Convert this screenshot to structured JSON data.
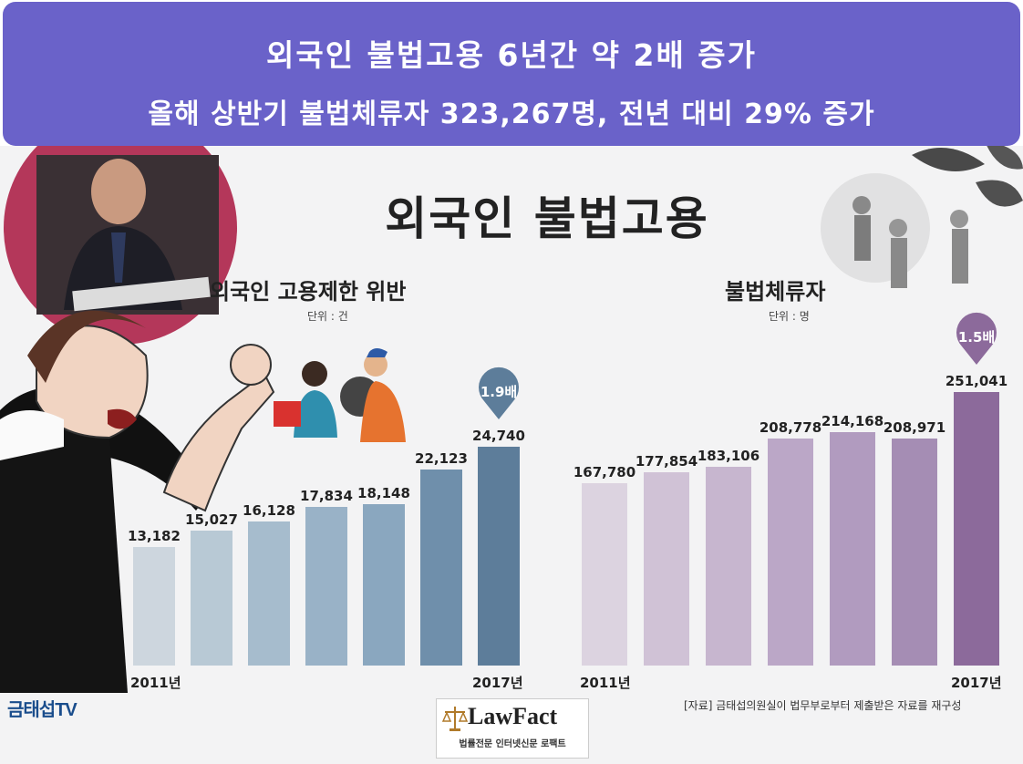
{
  "banner": {
    "line1": "외국인 불법고용 6년간 약 2배 증가",
    "line2": "올해 상반기 불법체류자 323,267명, 전년 대비 29% 증가"
  },
  "infographic": {
    "title": "외국인 불법고용",
    "logo_text": "금태섭TV",
    "source_note": "[자료] 금태섭의원실이 법무부로부터 제출받은 자료를 재구성",
    "lawfact": {
      "name": "LawFact",
      "tagline": "법률전문 인터넷신문 로팩트"
    }
  },
  "chart_data": [
    {
      "type": "bar",
      "title": "외국인 고용제한 위반",
      "unit_label": "단위 : 건",
      "start_label": "2011년",
      "end_label": "2017년",
      "values": [
        13182,
        15027,
        16128,
        17834,
        18148,
        22123,
        24740
      ],
      "value_labels": [
        "13,182",
        "15,027",
        "16,128",
        "17,834",
        "18,148",
        "22,123",
        "24,740"
      ],
      "ratio_badge": "1.9배",
      "colors": [
        "#cdd6de",
        "#b8c9d5",
        "#a6bccd",
        "#99b2c7",
        "#8aa7bf",
        "#6f8fab",
        "#5d7d9a"
      ],
      "badge_color": "#5d7d9a"
    },
    {
      "type": "bar",
      "title": "불법체류자",
      "unit_label": "단위 : 명",
      "start_label": "2011년",
      "end_label": "2017년",
      "values": [
        167780,
        177854,
        183106,
        208778,
        214168,
        208971,
        251041
      ],
      "value_labels": [
        "167,780",
        "177,854",
        "183,106",
        "208,778",
        "214,168",
        "208,971",
        "251,041"
      ],
      "ratio_badge": "1.5배",
      "colors": [
        "#dcd3e0",
        "#d0c2d6",
        "#c7b6cf",
        "#bba7c7",
        "#b19bbf",
        "#a58db4",
        "#8c6a9b"
      ],
      "badge_color": "#8c6a9b"
    }
  ]
}
